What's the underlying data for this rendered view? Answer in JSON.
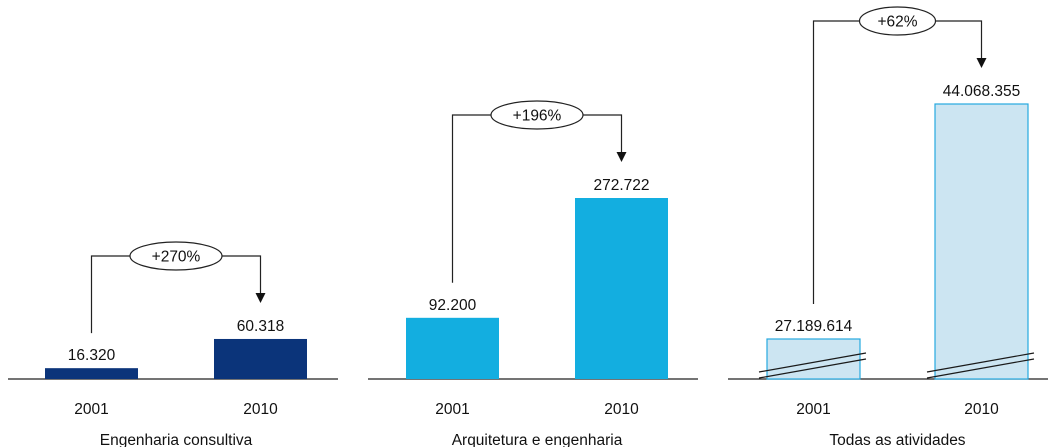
{
  "chart_data": [
    {
      "type": "bar",
      "title": "Engenharia consultiva",
      "categories": [
        "2001",
        "2010"
      ],
      "values": [
        16320,
        60318
      ],
      "value_labels": [
        "16.320",
        "60.318"
      ],
      "growth_label": "+270%",
      "ylim": [
        0,
        300000
      ],
      "color": "#0b347a",
      "style": "solid"
    },
    {
      "type": "bar",
      "title": "Arquitetura e engenharia",
      "categories": [
        "2001",
        "2010"
      ],
      "values": [
        92200,
        272722
      ],
      "value_labels": [
        "92.200",
        "272.722"
      ],
      "growth_label": "+196%",
      "ylim": [
        0,
        300000
      ],
      "color": "#13aee0",
      "style": "solid"
    },
    {
      "type": "bar",
      "title": "Todas as atividades",
      "categories": [
        "2001",
        "2010"
      ],
      "values": [
        27189614,
        44068355
      ],
      "value_labels": [
        "27.189.614",
        "44.068.355"
      ],
      "growth_label": "+62%",
      "axis_break": true,
      "color": "#cce5f2",
      "stroke": "#26a9e0",
      "style": "broken"
    }
  ]
}
